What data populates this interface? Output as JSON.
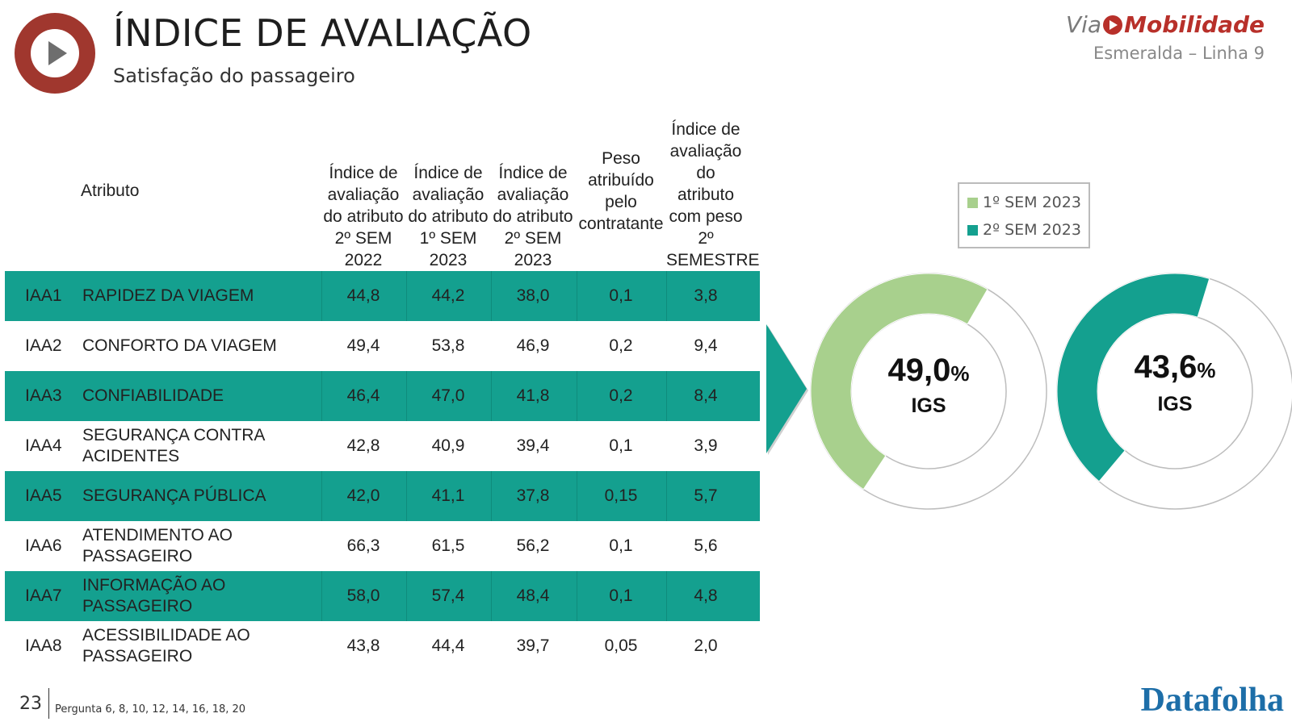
{
  "header": {
    "title": "ÍNDICE DE AVALIAÇÃO",
    "subtitle": "Satisfação do passageiro",
    "brand_via": "Via",
    "brand_name": "Mobilidade",
    "brand_line": "Esmeralda – Linha 9"
  },
  "table": {
    "columns": {
      "attr": "Atributo",
      "c1": "Índice de avaliação do atributo 2º SEM 2022",
      "c2": "Índice de avaliação do atributo 1º SEM 2023",
      "c3": "Índice de avaliação do atributo 2º SEM 2023",
      "c4": "Peso atribuído pelo contratante",
      "c5": "Índice de avaliação do atributo com peso 2º SEMESTRE"
    },
    "rows": [
      {
        "id": "IAA1",
        "name": "RAPIDEZ DA VIAGEM",
        "v1": "44,8",
        "v2": "44,2",
        "v3": "38,0",
        "v4": "0,1",
        "v5": "3,8"
      },
      {
        "id": "IAA2",
        "name": "CONFORTO DA VIAGEM",
        "v1": "49,4",
        "v2": "53,8",
        "v3": "46,9",
        "v4": "0,2",
        "v5": "9,4"
      },
      {
        "id": "IAA3",
        "name": "CONFIABILIDADE",
        "v1": "46,4",
        "v2": "47,0",
        "v3": "41,8",
        "v4": "0,2",
        "v5": "8,4"
      },
      {
        "id": "IAA4",
        "name": "SEGURANÇA CONTRA ACIDENTES",
        "v1": "42,8",
        "v2": "40,9",
        "v3": "39,4",
        "v4": "0,1",
        "v5": "3,9"
      },
      {
        "id": "IAA5",
        "name": "SEGURANÇA PÚBLICA",
        "v1": "42,0",
        "v2": "41,1",
        "v3": "37,8",
        "v4": "0,15",
        "v5": "5,7"
      },
      {
        "id": "IAA6",
        "name": "ATENDIMENTO AO PASSAGEIRO",
        "v1": "66,3",
        "v2": "61,5",
        "v3": "56,2",
        "v4": "0,1",
        "v5": "5,6"
      },
      {
        "id": "IAA7",
        "name": "INFORMAÇÃO AO PASSAGEIRO",
        "v1": "58,0",
        "v2": "57,4",
        "v3": "48,4",
        "v4": "0,1",
        "v5": "4,8"
      },
      {
        "id": "IAA8",
        "name": "ACESSIBILIDADE AO PASSAGEIRO",
        "v1": "43,8",
        "v2": "44,4",
        "v3": "39,7",
        "v4": "0,05",
        "v5": "2,0"
      }
    ]
  },
  "chart_data": {
    "type": "donut",
    "series": [
      {
        "name": "1º SEM 2023",
        "value": 49.0,
        "value_label": "49,0",
        "unit": "%",
        "center_label": "IGS",
        "color": "#a8d08d"
      },
      {
        "name": "2º SEM 2023",
        "value": 43.6,
        "value_label": "43,6",
        "unit": "%",
        "center_label": "IGS",
        "color": "#14a08f"
      }
    ],
    "legend_position": "top-right"
  },
  "footer": {
    "page": "23",
    "note": "Pergunta 6, 8, 10, 12, 14, 16, 18, 20",
    "brand": "Datafolha"
  },
  "colors": {
    "teal": "#14a08f",
    "light_green": "#a8d08d",
    "brand_red": "#b8302a"
  }
}
